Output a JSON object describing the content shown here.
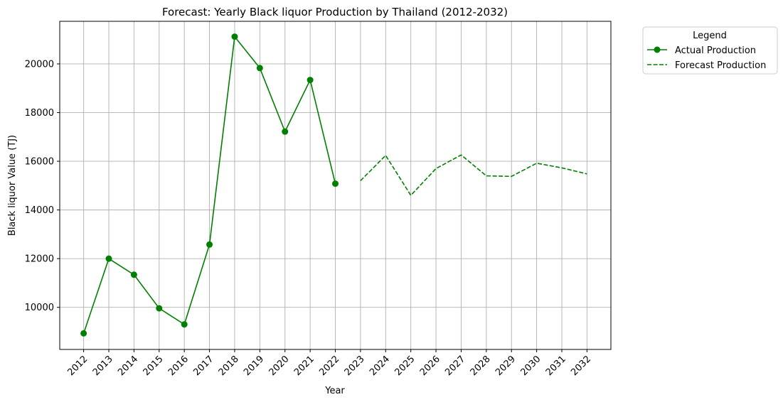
{
  "chart_data": {
    "type": "line",
    "title": "Forecast: Yearly Black liquor Production by Thailand (2012-2032)",
    "xlabel": "Year",
    "ylabel": "Black liquor Value (TJ)",
    "x_ticks": [
      "2012",
      "2013",
      "2014",
      "2015",
      "2016",
      "2017",
      "2018",
      "2019",
      "2020",
      "2021",
      "2022",
      "2023",
      "2024",
      "2025",
      "2026",
      "2027",
      "2028",
      "2029",
      "2030",
      "2031",
      "2032"
    ],
    "y_ticks": [
      10000,
      12000,
      14000,
      16000,
      18000,
      20000
    ],
    "y_tick_labels": [
      "10000",
      "12000",
      "14000",
      "16000",
      "18000",
      "20000"
    ],
    "xlim": [
      2011.05,
      2032.95
    ],
    "ylim": [
      8270,
      21750
    ],
    "grid": true,
    "legend": {
      "title": "Legend",
      "placement": "outside-top-right"
    },
    "series": [
      {
        "name": "Actual Production",
        "color": "#008000",
        "style": "solid",
        "marker": "circle",
        "x": [
          2012,
          2013,
          2014,
          2015,
          2016,
          2017,
          2018,
          2019,
          2020,
          2021,
          2022
        ],
        "y": [
          8930,
          12000,
          11340,
          9960,
          9300,
          12580,
          21120,
          19830,
          17220,
          19340,
          15080
        ]
      },
      {
        "name": "Forecast Production",
        "color": "#008000",
        "style": "dashed",
        "marker": "none",
        "x": [
          2023,
          2024,
          2025,
          2026,
          2027,
          2028,
          2029,
          2030,
          2031,
          2032
        ],
        "y": [
          15200,
          16240,
          14600,
          15700,
          16260,
          15400,
          15380,
          15920,
          15730,
          15480
        ]
      }
    ]
  }
}
